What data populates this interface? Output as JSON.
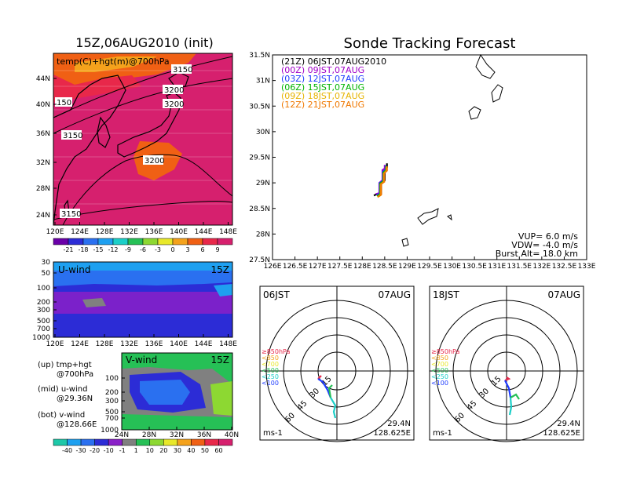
{
  "left": {
    "title": "15Z,06AUG2010 (init)",
    "top_panel": {
      "label": "temp(C)+hgt(m)@700hPa",
      "lat_ticks": [
        "44N",
        "40N",
        "36N",
        "32N",
        "28N",
        "24N"
      ],
      "lon_ticks": [
        "120E",
        "124E",
        "128E",
        "132E",
        "136E",
        "140E",
        "144E",
        "148E"
      ],
      "contour_labels": [
        "3150",
        "3200",
        "3200",
        "150",
        "3200",
        "3150",
        "3150"
      ],
      "colorbar_labels": [
        "-21",
        "-18",
        "-15",
        "-12",
        "-9",
        "-6",
        "-3",
        "0",
        "3",
        "6",
        "9"
      ],
      "colorbar_colors": [
        "#6a00a8",
        "#2c2cd6",
        "#2a70f0",
        "#1ea0f0",
        "#1ccfc8",
        "#26c056",
        "#8dd832",
        "#e8e82a",
        "#f4a21c",
        "#f06014",
        "#e8284a",
        "#d6206e"
      ]
    },
    "mid_panel": {
      "label": "U-wind",
      "time": "15Z",
      "pres_ticks": [
        "30",
        "50",
        "100",
        "200",
        "300",
        "500",
        "700",
        "1000"
      ],
      "lon_ticks": [
        "120E",
        "124E",
        "128E",
        "132E",
        "136E",
        "140E",
        "144E",
        "148E"
      ]
    },
    "bottom_panel": {
      "label": "V-wind",
      "time": "15Z",
      "pres_ticks": [
        "100",
        "200",
        "300",
        "500",
        "700",
        "1000"
      ],
      "lat_ticks": [
        "24N",
        "28N",
        "32N",
        "36N",
        "40N"
      ]
    },
    "legend_notes": [
      {
        "a": "(up) tmp+hgt",
        "b": "@700hPa"
      },
      {
        "a": "(mid) u-wind",
        "b": "@29.36N"
      },
      {
        "a": "(bot) v-wind",
        "b": "@128.66E"
      }
    ],
    "wind_colorbar_labels": [
      "-40",
      "-30",
      "-20",
      "-10",
      "-1",
      "1",
      "10",
      "20",
      "30",
      "40",
      "50",
      "60"
    ],
    "wind_colorbar_colors": [
      "#1ec8a8",
      "#1ea0f0",
      "#2a70f0",
      "#2c2cd6",
      "#8a20c8",
      "#808080",
      "#26c056",
      "#8dd832",
      "#e8e82a",
      "#f4a21c",
      "#f06014",
      "#e8284a",
      "#d6206e"
    ]
  },
  "right": {
    "title": "Sonde Tracking Forecast",
    "legend": [
      {
        "text": "(21Z)  06JST,07AUG2010",
        "color": "#000000"
      },
      {
        "text": "(00Z)  09JST,07AUG",
        "color": "#a000c8"
      },
      {
        "text": "(03Z)  12JST,07AUG",
        "color": "#1e3cff"
      },
      {
        "text": "(06Z)  15JST,07AUG",
        "color": "#00b400"
      },
      {
        "text": "(09Z)  18JST,07AUG",
        "color": "#e6b400"
      },
      {
        "text": "(12Z)  21JST,07AUG",
        "color": "#f07800"
      }
    ],
    "params": [
      "VUP=  6.0  m/s",
      "VDW= -4.0  m/s",
      "Burst Alt=  18.0  km"
    ],
    "chart_data": {
      "type": "line",
      "xlim": [
        126,
        133
      ],
      "ylim": [
        27.5,
        31.5
      ],
      "x_ticks": [
        "126E",
        "126.5E",
        "127E",
        "127.5E",
        "128E",
        "128.5E",
        "129E",
        "129.5E",
        "130E",
        "130.5E",
        "131E",
        "131.5E",
        "132E",
        "132.5E",
        "133E"
      ],
      "y_ticks": [
        "27.5N",
        "28N",
        "28.5N",
        "29N",
        "29.5N",
        "30N",
        "30.5N",
        "31N",
        "31.5N"
      ],
      "series": [
        {
          "color": "#000000",
          "x": [
            128.26,
            128.3,
            128.42,
            128.42,
            128.5,
            128.5,
            128.55,
            128.55
          ],
          "y": [
            28.75,
            28.77,
            28.79,
            28.98,
            29.05,
            29.25,
            29.3,
            29.38
          ]
        },
        {
          "color": "#a000c8",
          "x": [
            128.3,
            128.38,
            128.38,
            128.45,
            128.45,
            128.5,
            128.5
          ],
          "y": [
            28.78,
            28.8,
            29.0,
            29.05,
            29.25,
            29.28,
            29.35
          ]
        },
        {
          "color": "#1e3cff",
          "x": [
            128.32,
            128.39,
            128.39,
            128.46,
            128.46,
            128.52,
            128.52
          ],
          "y": [
            28.76,
            28.79,
            29.0,
            29.04,
            29.22,
            29.26,
            29.34
          ]
        },
        {
          "color": "#00b400",
          "x": [
            128.33,
            128.4,
            128.4,
            128.47,
            128.47,
            128.53,
            128.53
          ],
          "y": [
            28.74,
            28.78,
            28.99,
            29.03,
            29.2,
            29.25,
            29.33
          ]
        },
        {
          "color": "#e6b400",
          "x": [
            128.34,
            128.41,
            128.41,
            128.48,
            128.48,
            128.54,
            128.54
          ],
          "y": [
            28.72,
            28.76,
            28.97,
            29.02,
            29.18,
            29.24,
            29.32
          ]
        },
        {
          "color": "#f07800",
          "x": [
            128.35,
            128.42,
            128.42,
            128.49,
            128.49,
            128.55,
            128.55
          ],
          "y": [
            28.73,
            28.77,
            28.98,
            29.02,
            29.19,
            29.24,
            29.32
          ]
        }
      ]
    },
    "hodographs": [
      {
        "time": "06JST",
        "date": "07AUG",
        "lat": "29.4N",
        "lon": "128.625E",
        "unit": "ms-1",
        "rings": [
          "15",
          "30",
          "45",
          "60"
        ]
      },
      {
        "time": "18JST",
        "date": "07AUG",
        "lat": "29.4N",
        "lon": "128.625E",
        "unit": "ms-1",
        "rings": [
          "15",
          "30",
          "45",
          "60"
        ]
      }
    ],
    "hodo_levels": [
      {
        "text": "≥850hPa",
        "color": "#e8284a"
      },
      {
        "text": "<850",
        "color": "#f4a21c"
      },
      {
        "text": "<700",
        "color": "#e8e82a"
      },
      {
        "text": "<500",
        "color": "#26c056"
      },
      {
        "text": "<250",
        "color": "#1ccfc8"
      },
      {
        "text": "<100",
        "color": "#1e3cff"
      }
    ]
  }
}
